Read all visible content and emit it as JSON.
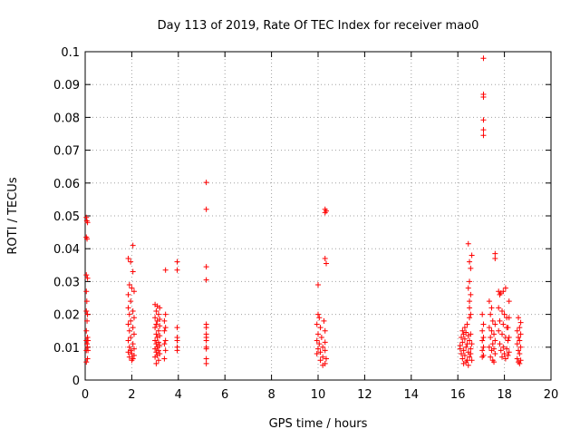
{
  "chart_data": {
    "type": "scatter",
    "title": "Day 113 of 2019, Rate Of TEC Index for receiver mao0",
    "xlabel": "GPS time / hours",
    "ylabel": "ROTI / TECUs",
    "xlim": [
      0,
      20
    ],
    "ylim": [
      0,
      0.1
    ],
    "grid": true,
    "marker": "plus",
    "x_ticks": [
      0,
      2,
      4,
      6,
      8,
      10,
      12,
      14,
      16,
      18,
      20
    ],
    "x_tick_labels": [
      "0",
      "2",
      "4",
      "6",
      "8",
      "10",
      "12",
      "14",
      "16",
      "18",
      "20"
    ],
    "y_ticks": [
      0,
      0.01,
      0.02,
      0.03,
      0.04,
      0.05,
      0.06,
      0.07,
      0.08,
      0.09,
      0.1
    ],
    "y_tick_labels": [
      "0",
      "0.01",
      "0.02",
      "0.03",
      "0.04",
      "0.05",
      "0.06",
      "0.07",
      "0.08",
      "0.09",
      "0.1"
    ],
    "series": [
      {
        "name": "ROTI",
        "color": "#ff0000",
        "points": [
          [
            0.05,
            0.0495
          ],
          [
            0.07,
            0.0485
          ],
          [
            0.1,
            0.048
          ],
          [
            0.05,
            0.0435
          ],
          [
            0.08,
            0.043
          ],
          [
            0.05,
            0.032
          ],
          [
            0.1,
            0.031
          ],
          [
            0.05,
            0.027
          ],
          [
            0.07,
            0.024
          ],
          [
            0.05,
            0.021
          ],
          [
            0.1,
            0.02
          ],
          [
            0.08,
            0.018
          ],
          [
            0.05,
            0.015
          ],
          [
            0.1,
            0.013
          ],
          [
            0.05,
            0.012
          ],
          [
            0.08,
            0.011
          ],
          [
            0.1,
            0.01
          ],
          [
            0.05,
            0.009
          ],
          [
            0.1,
            0.0065
          ],
          [
            0.05,
            0.0055
          ],
          [
            0.12,
            0.012
          ],
          [
            0.12,
            0.009
          ],
          [
            1.85,
            0.037
          ],
          [
            1.95,
            0.036
          ],
          [
            2.05,
            0.041
          ],
          [
            2.05,
            0.033
          ],
          [
            1.9,
            0.029
          ],
          [
            2.0,
            0.028
          ],
          [
            1.85,
            0.026
          ],
          [
            2.1,
            0.027
          ],
          [
            1.95,
            0.024
          ],
          [
            1.85,
            0.022
          ],
          [
            2.05,
            0.021
          ],
          [
            1.9,
            0.02
          ],
          [
            2.1,
            0.019
          ],
          [
            1.95,
            0.018
          ],
          [
            1.85,
            0.017
          ],
          [
            2.05,
            0.016
          ],
          [
            1.9,
            0.015
          ],
          [
            2.1,
            0.014
          ],
          [
            1.95,
            0.013
          ],
          [
            1.85,
            0.012
          ],
          [
            2.05,
            0.011
          ],
          [
            1.9,
            0.01
          ],
          [
            2.1,
            0.0095
          ],
          [
            1.95,
            0.009
          ],
          [
            1.85,
            0.0085
          ],
          [
            2.0,
            0.008
          ],
          [
            2.1,
            0.0075
          ],
          [
            1.9,
            0.007
          ],
          [
            2.05,
            0.0065
          ],
          [
            2.0,
            0.006
          ],
          [
            3.0,
            0.023
          ],
          [
            3.1,
            0.0225
          ],
          [
            3.2,
            0.022
          ],
          [
            3.05,
            0.021
          ],
          [
            3.15,
            0.02
          ],
          [
            3.0,
            0.019
          ],
          [
            3.2,
            0.0185
          ],
          [
            3.1,
            0.018
          ],
          [
            3.05,
            0.017
          ],
          [
            3.2,
            0.0165
          ],
          [
            3.0,
            0.016
          ],
          [
            3.15,
            0.015
          ],
          [
            3.05,
            0.014
          ],
          [
            3.2,
            0.0135
          ],
          [
            3.1,
            0.013
          ],
          [
            3.0,
            0.012
          ],
          [
            3.15,
            0.0115
          ],
          [
            3.05,
            0.011
          ],
          [
            3.2,
            0.0105
          ],
          [
            3.1,
            0.01
          ],
          [
            3.0,
            0.0095
          ],
          [
            3.15,
            0.009
          ],
          [
            3.05,
            0.0085
          ],
          [
            3.2,
            0.008
          ],
          [
            3.1,
            0.0075
          ],
          [
            3.0,
            0.007
          ],
          [
            3.15,
            0.006
          ],
          [
            3.05,
            0.005
          ],
          [
            3.45,
            0.0335
          ],
          [
            3.45,
            0.02
          ],
          [
            3.4,
            0.018
          ],
          [
            3.45,
            0.016
          ],
          [
            3.4,
            0.015
          ],
          [
            3.45,
            0.012
          ],
          [
            3.4,
            0.011
          ],
          [
            3.45,
            0.009
          ],
          [
            3.4,
            0.0065
          ],
          [
            3.95,
            0.036
          ],
          [
            3.95,
            0.0335
          ],
          [
            3.95,
            0.016
          ],
          [
            3.95,
            0.013
          ],
          [
            3.95,
            0.012
          ],
          [
            3.95,
            0.01
          ],
          [
            3.95,
            0.009
          ],
          [
            5.2,
            0.0602
          ],
          [
            5.2,
            0.052
          ],
          [
            5.2,
            0.0345
          ],
          [
            5.2,
            0.0305
          ],
          [
            5.2,
            0.017
          ],
          [
            5.2,
            0.016
          ],
          [
            5.2,
            0.014
          ],
          [
            5.2,
            0.013
          ],
          [
            5.2,
            0.012
          ],
          [
            5.2,
            0.01
          ],
          [
            5.2,
            0.0095
          ],
          [
            5.2,
            0.0065
          ],
          [
            5.2,
            0.005
          ],
          [
            10.3,
            0.052
          ],
          [
            10.35,
            0.0515
          ],
          [
            10.3,
            0.051
          ],
          [
            10.3,
            0.037
          ],
          [
            10.35,
            0.0355
          ],
          [
            10.0,
            0.029
          ],
          [
            10.0,
            0.02
          ],
          [
            10.05,
            0.019
          ],
          [
            10.25,
            0.018
          ],
          [
            9.95,
            0.017
          ],
          [
            10.1,
            0.016
          ],
          [
            10.3,
            0.015
          ],
          [
            10.0,
            0.014
          ],
          [
            10.15,
            0.013
          ],
          [
            9.95,
            0.012
          ],
          [
            10.3,
            0.0115
          ],
          [
            10.05,
            0.011
          ],
          [
            10.2,
            0.01
          ],
          [
            10.0,
            0.0095
          ],
          [
            10.3,
            0.009
          ],
          [
            10.1,
            0.0085
          ],
          [
            9.95,
            0.008
          ],
          [
            10.2,
            0.007
          ],
          [
            10.35,
            0.0065
          ],
          [
            10.1,
            0.006
          ],
          [
            10.3,
            0.005
          ],
          [
            10.2,
            0.0045
          ],
          [
            16.45,
            0.0415
          ],
          [
            16.6,
            0.038
          ],
          [
            16.5,
            0.036
          ],
          [
            16.55,
            0.034
          ],
          [
            16.5,
            0.03
          ],
          [
            16.45,
            0.028
          ],
          [
            16.55,
            0.026
          ],
          [
            16.5,
            0.024
          ],
          [
            16.5,
            0.022
          ],
          [
            16.55,
            0.02
          ],
          [
            16.5,
            0.019
          ],
          [
            16.4,
            0.017
          ],
          [
            16.3,
            0.016
          ],
          [
            16.2,
            0.015
          ],
          [
            16.35,
            0.0145
          ],
          [
            16.25,
            0.014
          ],
          [
            16.45,
            0.0135
          ],
          [
            16.15,
            0.013
          ],
          [
            16.3,
            0.0125
          ],
          [
            16.5,
            0.012
          ],
          [
            16.2,
            0.0115
          ],
          [
            16.4,
            0.011
          ],
          [
            16.1,
            0.0105
          ],
          [
            16.35,
            0.01
          ],
          [
            16.55,
            0.0095
          ],
          [
            16.25,
            0.009
          ],
          [
            16.45,
            0.0085
          ],
          [
            16.15,
            0.008
          ],
          [
            16.3,
            0.0075
          ],
          [
            16.5,
            0.007
          ],
          [
            16.2,
            0.0065
          ],
          [
            16.4,
            0.006
          ],
          [
            16.35,
            0.0055
          ],
          [
            16.25,
            0.005
          ],
          [
            16.45,
            0.0045
          ],
          [
            16.55,
            0.014
          ],
          [
            16.6,
            0.011
          ],
          [
            16.55,
            0.008
          ],
          [
            16.1,
            0.0095
          ],
          [
            16.6,
            0.006
          ],
          [
            17.1,
            0.098
          ],
          [
            17.1,
            0.087
          ],
          [
            17.1,
            0.0862
          ],
          [
            17.1,
            0.0792
          ],
          [
            17.1,
            0.0762
          ],
          [
            17.1,
            0.0745
          ],
          [
            17.05,
            0.02
          ],
          [
            17.1,
            0.017
          ],
          [
            17.05,
            0.015
          ],
          [
            17.1,
            0.013
          ],
          [
            17.05,
            0.012
          ],
          [
            17.1,
            0.01
          ],
          [
            17.05,
            0.009
          ],
          [
            17.1,
            0.0075
          ],
          [
            17.05,
            0.007
          ],
          [
            17.35,
            0.024
          ],
          [
            17.45,
            0.022
          ],
          [
            17.4,
            0.02
          ],
          [
            17.5,
            0.018
          ],
          [
            17.35,
            0.016
          ],
          [
            17.6,
            0.017
          ],
          [
            17.45,
            0.015
          ],
          [
            17.55,
            0.014
          ],
          [
            17.4,
            0.013
          ],
          [
            17.6,
            0.012
          ],
          [
            17.5,
            0.011
          ],
          [
            17.35,
            0.01
          ],
          [
            17.55,
            0.0095
          ],
          [
            17.45,
            0.009
          ],
          [
            17.6,
            0.008
          ],
          [
            17.4,
            0.007
          ],
          [
            17.5,
            0.006
          ],
          [
            17.55,
            0.0055
          ],
          [
            17.6,
            0.0385
          ],
          [
            17.6,
            0.037
          ],
          [
            17.75,
            0.027
          ],
          [
            17.85,
            0.0265
          ],
          [
            17.8,
            0.026
          ],
          [
            17.95,
            0.027
          ],
          [
            18.05,
            0.028
          ],
          [
            17.75,
            0.022
          ],
          [
            17.9,
            0.021
          ],
          [
            18.0,
            0.02
          ],
          [
            18.1,
            0.019
          ],
          [
            17.8,
            0.018
          ],
          [
            17.95,
            0.017
          ],
          [
            18.1,
            0.016
          ],
          [
            17.75,
            0.015
          ],
          [
            17.9,
            0.014
          ],
          [
            18.05,
            0.013
          ],
          [
            18.15,
            0.012
          ],
          [
            17.8,
            0.011
          ],
          [
            17.95,
            0.01
          ],
          [
            18.1,
            0.0095
          ],
          [
            17.85,
            0.009
          ],
          [
            18.0,
            0.008
          ],
          [
            18.15,
            0.0075
          ],
          [
            17.9,
            0.007
          ],
          [
            18.05,
            0.0065
          ],
          [
            18.15,
            0.016
          ],
          [
            18.2,
            0.024
          ],
          [
            18.2,
            0.019
          ],
          [
            18.2,
            0.013
          ],
          [
            18.2,
            0.0085
          ],
          [
            18.6,
            0.019
          ],
          [
            18.7,
            0.0175
          ],
          [
            18.65,
            0.016
          ],
          [
            18.55,
            0.015
          ],
          [
            18.7,
            0.014
          ],
          [
            18.6,
            0.013
          ],
          [
            18.65,
            0.012
          ],
          [
            18.55,
            0.011
          ],
          [
            18.7,
            0.01
          ],
          [
            18.6,
            0.009
          ],
          [
            18.65,
            0.008
          ],
          [
            18.55,
            0.0065
          ],
          [
            18.7,
            0.006
          ],
          [
            18.6,
            0.0055
          ],
          [
            18.65,
            0.005
          ]
        ]
      }
    ]
  }
}
